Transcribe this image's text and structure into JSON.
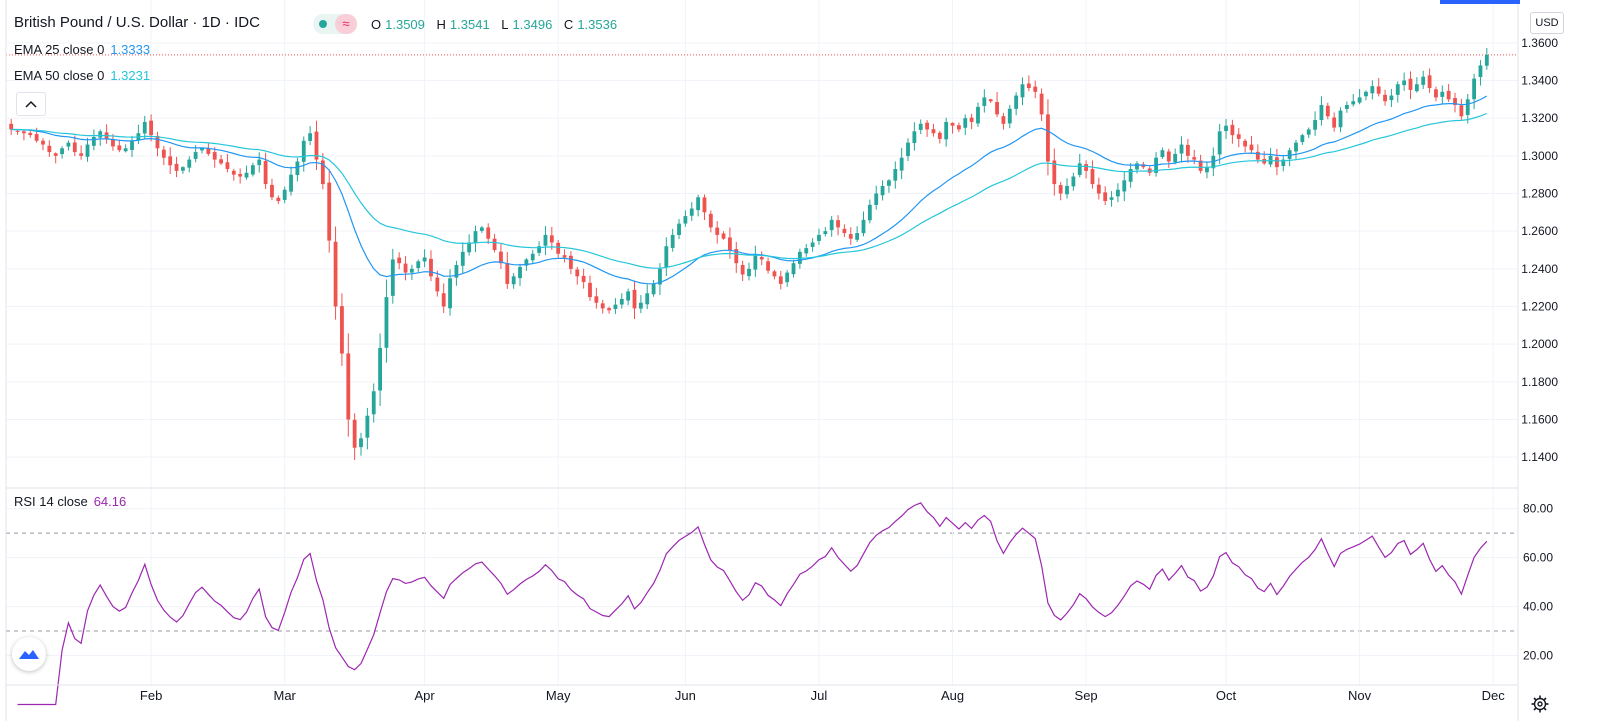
{
  "header": {
    "title": "British Pound / U.S. Dollar · 1D · IDC",
    "ohlc": [
      {
        "label": "O",
        "value": "1.3509"
      },
      {
        "label": "H",
        "value": "1.3541"
      },
      {
        "label": "L",
        "value": "1.3496"
      },
      {
        "label": "C",
        "value": "1.3536"
      }
    ],
    "status_wave_glyph": "≈",
    "currency": "USD"
  },
  "indicators": {
    "ema25": {
      "label": "EMA 25 close 0",
      "value": "1.3333",
      "color": "#2196f3"
    },
    "ema50": {
      "label": "EMA 50 close 0",
      "value": "1.3231",
      "color": "#26c6da"
    },
    "rsi": {
      "label": "RSI 14 close",
      "value": "64.16",
      "color": "#9c27b0"
    }
  },
  "colors": {
    "up": "#26a69a",
    "down": "#ef5350",
    "grid": "#f0f3fa",
    "axis_text": "#131722",
    "price_line": "#ef5350"
  },
  "icons": {
    "collapse": "chevron-up-icon",
    "settings": "gear-icon",
    "logo": "tradingview-logo-icon"
  },
  "chart_data": [
    {
      "type": "candlestick",
      "title": "British Pound / U.S. Dollar · 1D · IDC",
      "ylim": [
        1.13,
        1.37
      ],
      "yticks": [
        "1.3600",
        "1.3400",
        "1.3200",
        "1.3000",
        "1.2800",
        "1.2600",
        "1.2400",
        "1.2200",
        "1.2000",
        "1.1800",
        "1.1600",
        "1.1400"
      ],
      "x_months": [
        "Feb",
        "Mar",
        "Apr",
        "May",
        "Jun",
        "Jul",
        "Aug",
        "Sep",
        "Oct",
        "Nov",
        "Dec"
      ],
      "month_start_index": [
        22,
        43,
        65,
        86,
        106,
        127,
        148,
        169,
        191,
        212,
        233
      ],
      "close_series": [
        1.314,
        1.313,
        1.312,
        1.311,
        1.308,
        1.306,
        1.302,
        1.3,
        1.304,
        1.307,
        1.302,
        1.3,
        1.306,
        1.31,
        1.313,
        1.309,
        1.305,
        1.303,
        1.304,
        1.308,
        1.312,
        1.318,
        1.311,
        1.304,
        1.299,
        1.295,
        1.292,
        1.294,
        1.298,
        1.302,
        1.304,
        1.301,
        1.298,
        1.296,
        1.293,
        1.29,
        1.289,
        1.291,
        1.295,
        1.298,
        1.285,
        1.278,
        1.276,
        1.282,
        1.29,
        1.297,
        1.308,
        1.312,
        1.298,
        1.285,
        1.255,
        1.22,
        1.195,
        1.16,
        1.145,
        1.15,
        1.162,
        1.175,
        1.198,
        1.225,
        1.245,
        1.243,
        1.238,
        1.24,
        1.244,
        1.246,
        1.236,
        1.228,
        1.22,
        1.235,
        1.242,
        1.249,
        1.254,
        1.26,
        1.262,
        1.256,
        1.25,
        1.243,
        1.232,
        1.236,
        1.241,
        1.245,
        1.248,
        1.252,
        1.258,
        1.254,
        1.248,
        1.246,
        1.24,
        1.236,
        1.233,
        1.225,
        1.222,
        1.219,
        1.218,
        1.221,
        1.224,
        1.228,
        1.219,
        1.222,
        1.227,
        1.232,
        1.24,
        1.252,
        1.258,
        1.264,
        1.268,
        1.272,
        1.278,
        1.27,
        1.262,
        1.258,
        1.256,
        1.25,
        1.243,
        1.237,
        1.24,
        1.247,
        1.245,
        1.239,
        1.236,
        1.232,
        1.238,
        1.243,
        1.249,
        1.251,
        1.254,
        1.258,
        1.26,
        1.266,
        1.262,
        1.259,
        1.256,
        1.259,
        1.266,
        1.274,
        1.28,
        1.284,
        1.287,
        1.293,
        1.299,
        1.307,
        1.313,
        1.317,
        1.314,
        1.312,
        1.309,
        1.318,
        1.316,
        1.314,
        1.32,
        1.318,
        1.326,
        1.331,
        1.329,
        1.322,
        1.317,
        1.325,
        1.332,
        1.338,
        1.336,
        1.334,
        1.322,
        1.297,
        1.285,
        1.28,
        1.284,
        1.289,
        1.296,
        1.292,
        1.285,
        1.28,
        1.276,
        1.278,
        1.282,
        1.287,
        1.293,
        1.296,
        1.294,
        1.291,
        1.299,
        1.303,
        1.297,
        1.301,
        1.306,
        1.3,
        1.298,
        1.292,
        1.294,
        1.3,
        1.313,
        1.316,
        1.311,
        1.309,
        1.305,
        1.303,
        1.298,
        1.296,
        1.3,
        1.294,
        1.298,
        1.303,
        1.307,
        1.311,
        1.314,
        1.319,
        1.327,
        1.321,
        1.315,
        1.324,
        1.327,
        1.329,
        1.331,
        1.334,
        1.337,
        1.333,
        1.329,
        1.332,
        1.338,
        1.34,
        1.335,
        1.338,
        1.342,
        1.336,
        1.331,
        1.334,
        1.33,
        1.327,
        1.321,
        1.33,
        1.341,
        1.348,
        1.3536
      ],
      "ema25_series_note": "computed from close_series, period 25",
      "ema50_series_note": "computed from close_series, period 50",
      "last_price": 1.3536
    },
    {
      "type": "line",
      "title": "RSI 14 close",
      "ylim": [
        10,
        86
      ],
      "yticks": [
        "80.00",
        "60.00",
        "40.00",
        "20.00"
      ],
      "bands": [
        70,
        30
      ],
      "values_note": "computed RSI(14) from close_series of the price panel"
    }
  ]
}
